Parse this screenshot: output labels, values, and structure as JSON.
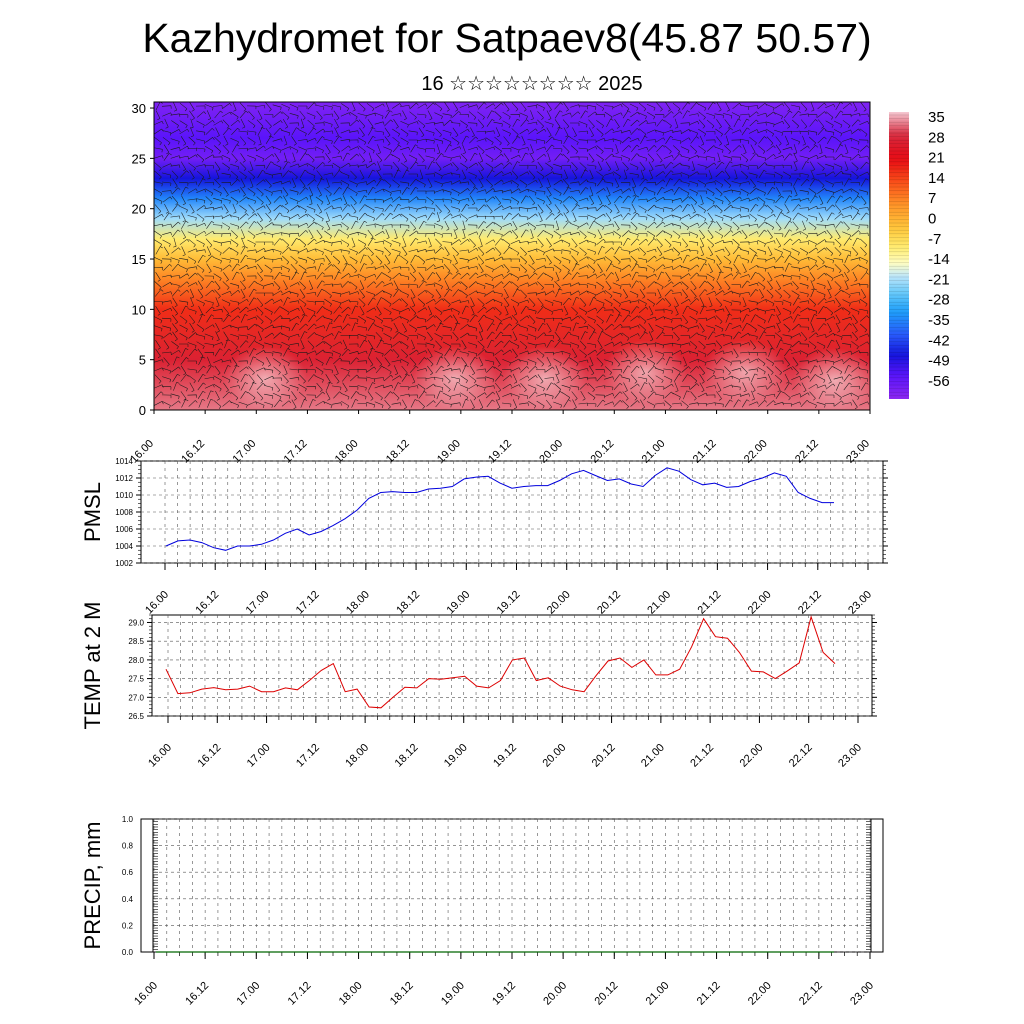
{
  "title": "Kazhydromet for Satpaev8(45.87 50.57)",
  "subtitle": "16 ☆☆☆☆☆☆☆☆ 2025",
  "chart_data": [
    {
      "type": "heatmap",
      "name": "vertical-section",
      "description_note": "",
      "x_tick_labels": [
        "16.00",
        "16.12",
        "17.00",
        "17.12",
        "18.00",
        "18.12",
        "19.00",
        "19.12",
        "20.00",
        "20.12",
        "21.00",
        "21.12",
        "22.00",
        "22.12",
        "23.00"
      ],
      "y_tick_labels": [
        "0",
        "5",
        "10",
        "15",
        "20",
        "25",
        "30"
      ],
      "ylim": [
        0,
        30.6
      ],
      "colorbar_labels": [
        "35",
        "28",
        "21",
        "14",
        "7",
        "0",
        "-7",
        "-14",
        "-21",
        "-28",
        "-35",
        "-42",
        "-49",
        "-56"
      ],
      "colorbar_range": [
        -60,
        38
      ],
      "vertical_temperature_profile": [
        {
          "level": 0,
          "temp": 34
        },
        {
          "level": 5,
          "temp": 28
        },
        {
          "level": 10,
          "temp": 18
        },
        {
          "level": 13,
          "temp": 8
        },
        {
          "level": 15,
          "temp": 0
        },
        {
          "level": 17,
          "temp": -8
        },
        {
          "level": 19,
          "temp": -20
        },
        {
          "level": 21,
          "temp": -33
        },
        {
          "level": 23,
          "temp": -45
        },
        {
          "level": 25,
          "temp": -56
        },
        {
          "level": 27,
          "temp": -52
        },
        {
          "level": 30.6,
          "temp": -58
        }
      ],
      "grid": false
    },
    {
      "type": "line",
      "name": "pmsl",
      "ylabel": "PMSL",
      "ylim": [
        1002,
        1014
      ],
      "y_tick_labels": [
        "1002",
        "1004",
        "1006",
        "1008",
        "1010",
        "1012",
        "1014"
      ],
      "x_tick_labels": [
        "16.00",
        "16.12",
        "17.00",
        "17.12",
        "18.00",
        "18.12",
        "19.00",
        "19.12",
        "20.00",
        "20.12",
        "21.00",
        "21.12",
        "22.00",
        "22.12",
        "23.00"
      ],
      "x_step_hours": 3,
      "grid": true,
      "color": "#0000dd",
      "values": [
        1004.0,
        1004.6,
        1004.7,
        1004.4,
        1003.8,
        1003.5,
        1004.0,
        1004.0,
        1004.2,
        1004.7,
        1005.5,
        1006.0,
        1005.3,
        1005.7,
        1006.4,
        1007.2,
        1008.2,
        1009.6,
        1010.3,
        1010.4,
        1010.3,
        1010.3,
        1010.7,
        1010.8,
        1011.0,
        1011.9,
        1012.1,
        1012.2,
        1011.4,
        1010.8,
        1011.0,
        1011.1,
        1011.1,
        1011.7,
        1012.5,
        1012.9,
        1012.3,
        1011.7,
        1011.9,
        1011.3,
        1011.0,
        1012.3,
        1013.2,
        1012.8,
        1011.8,
        1011.2,
        1011.4,
        1010.9,
        1011.0,
        1011.6,
        1012.0,
        1012.6,
        1012.2,
        1010.3,
        1009.6,
        1009.1,
        1009.1
      ]
    },
    {
      "type": "line",
      "name": "temp-2m",
      "ylabel": "TEMP at 2 M",
      "ylim": [
        26.5,
        29.2
      ],
      "y_tick_labels": [
        "26.5",
        "27.0",
        "27.5",
        "28.0",
        "28.5",
        "29.0"
      ],
      "x_tick_labels": [
        "16.00",
        "16.12",
        "17.00",
        "17.12",
        "18.00",
        "18.12",
        "19.00",
        "19.12",
        "20.00",
        "20.12",
        "21.00",
        "21.12",
        "22.00",
        "22.12",
        "23.00"
      ],
      "x_step_hours": 3,
      "grid": true,
      "color": "#dd0000",
      "values": [
        27.75,
        27.1,
        27.12,
        27.22,
        27.26,
        27.2,
        27.22,
        27.3,
        27.15,
        27.15,
        27.25,
        27.2,
        27.45,
        27.72,
        27.9,
        27.15,
        27.22,
        26.74,
        26.72,
        27.0,
        27.27,
        27.25,
        27.5,
        27.48,
        27.52,
        27.56,
        27.3,
        27.25,
        27.45,
        28.0,
        28.05,
        27.45,
        27.52,
        27.3,
        27.2,
        27.15,
        27.58,
        27.97,
        28.05,
        27.8,
        28.0,
        27.6,
        27.6,
        27.75,
        28.35,
        29.1,
        28.62,
        28.58,
        28.2,
        27.7,
        27.68,
        27.5,
        27.7,
        27.92,
        29.15,
        28.2,
        27.9
      ]
    },
    {
      "type": "line",
      "name": "precip",
      "ylabel": "PRECIP, mm",
      "ylim": [
        0,
        1
      ],
      "y_tick_labels": [
        "0.0",
        "0.2",
        "0.4",
        "0.6",
        "0.8",
        "1.0"
      ],
      "x_tick_labels": [
        "16.00",
        "16.12",
        "17.00",
        "17.12",
        "18.00",
        "18.12",
        "19.00",
        "19.12",
        "20.00",
        "20.12",
        "21.00",
        "21.12",
        "22.00",
        "22.12",
        "23.00"
      ],
      "grid": true,
      "color": "#006600",
      "values": [
        0,
        0,
        0,
        0,
        0,
        0,
        0,
        0,
        0,
        0,
        0,
        0,
        0,
        0,
        0
      ]
    }
  ]
}
